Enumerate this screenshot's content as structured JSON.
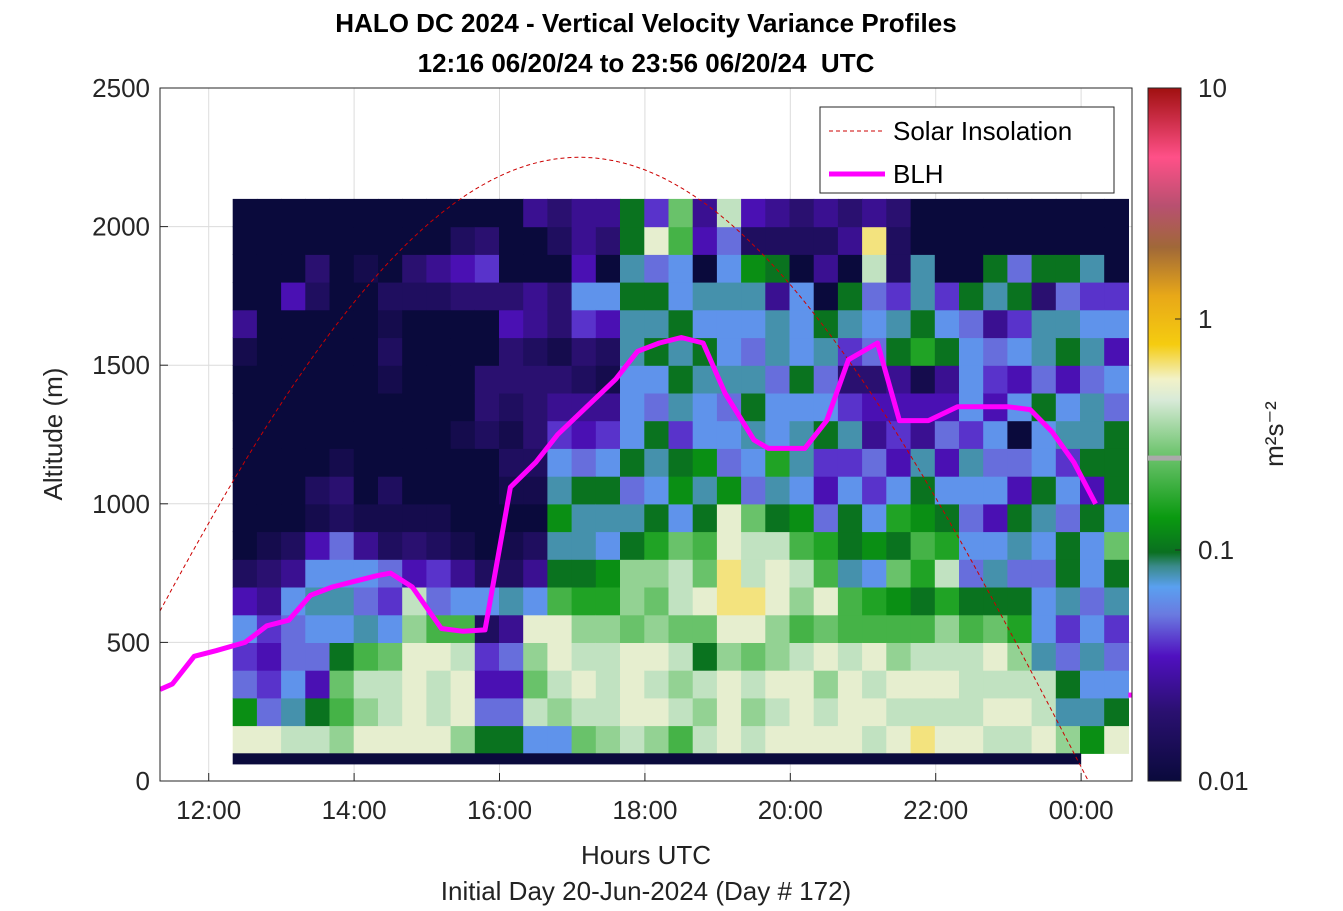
{
  "chart_data": {
    "type": "heatmap",
    "title": "HALO DC 2024 - Vertical Velocity Variance Profiles",
    "subtitle": "12:16 06/20/24 to 23:56 06/20/24  UTC",
    "xlabel": "Hours UTC",
    "sublabel": "Initial Day 20-Jun-2024 (Day # 172)",
    "ylabel": "Altitude (m)",
    "x_range_hours": [
      11.33,
      24.7
    ],
    "ylim": [
      0,
      2500
    ],
    "x_ticks": [
      {
        "hour": 12,
        "label": "12:00"
      },
      {
        "hour": 14,
        "label": "14:00"
      },
      {
        "hour": 16,
        "label": "16:00"
      },
      {
        "hour": 18,
        "label": "18:00"
      },
      {
        "hour": 20,
        "label": "20:00"
      },
      {
        "hour": 22,
        "label": "22:00"
      },
      {
        "hour": 24,
        "label": "00:00"
      }
    ],
    "y_ticks": [
      0,
      500,
      1000,
      1500,
      2000,
      2500
    ],
    "colorbar": {
      "scale": "log",
      "range": [
        0.01,
        10
      ],
      "ticks": [
        "0.01",
        "0.1",
        "1",
        "10"
      ],
      "label": "m²s⁻²",
      "marker_value": 0.25
    },
    "grid": true,
    "legend": {
      "placement": "top-right",
      "entries": [
        "Solar Insolation",
        "BLH"
      ]
    },
    "variance_grid": {
      "x_start_hours": 12.33,
      "x_end_hours": 24.0,
      "time_step_hours": 0.333,
      "altitude_bins_m": [
        150,
        250,
        350,
        450,
        550,
        650,
        750,
        850,
        950,
        1050,
        1150,
        1250,
        1350,
        1450,
        1550,
        1650,
        1750,
        1850,
        1950,
        2050
      ],
      "log10_variance_rows_by_time": [
        [
          -0.3,
          -0.9,
          -1.3,
          -1.4,
          -1.2,
          -1.5,
          -1.8,
          -2.0,
          -2.0,
          -2.0,
          -2.0,
          -2.0,
          -2.0,
          -2.0,
          -1.9,
          -1.6,
          -2.0,
          -2.0,
          -2.0,
          -2.0
        ],
        [
          -0.3,
          -1.3,
          -1.4,
          -1.5,
          -1.4,
          -1.6,
          -1.7,
          -1.9,
          -2.0,
          -2.0,
          -2.0,
          -2.0,
          -2.0,
          -2.0,
          -2.0,
          -2.0,
          -2.0,
          -2.0,
          -2.0,
          -2.0
        ],
        [
          -0.4,
          -1.1,
          -1.2,
          -1.3,
          -1.3,
          -1.2,
          -1.6,
          -1.8,
          -2.0,
          -2.0,
          -2.0,
          -2.0,
          -2.0,
          -2.0,
          -2.0,
          -2.0,
          -1.5,
          -2.0,
          -2.0,
          -2.0
        ],
        [
          -0.4,
          -1.0,
          -1.5,
          -1.3,
          -1.2,
          -1.1,
          -1.2,
          -1.5,
          -1.9,
          -1.8,
          -2.0,
          -2.0,
          -2.0,
          -2.0,
          -2.0,
          -2.0,
          -1.8,
          -1.7,
          -2.0,
          -2.0
        ],
        [
          -0.5,
          -0.7,
          -0.6,
          -1.0,
          -1.2,
          -1.1,
          -1.2,
          -1.3,
          -1.8,
          -1.7,
          -1.9,
          -2.0,
          -2.0,
          -2.0,
          -2.0,
          -2.0,
          -2.0,
          -2.0,
          -2.0,
          -2.0
        ],
        [
          -0.3,
          -0.5,
          -0.4,
          -0.7,
          -1.1,
          -1.3,
          -1.2,
          -1.6,
          -1.9,
          -2.0,
          -2.0,
          -2.0,
          -2.0,
          -2.0,
          -2.0,
          -2.0,
          -2.0,
          -1.9,
          -2.0,
          -2.0
        ],
        [
          -0.3,
          -0.4,
          -0.4,
          -0.6,
          -1.2,
          -1.4,
          -1.3,
          -1.8,
          -1.9,
          -1.8,
          -2.0,
          -2.0,
          -2.0,
          -1.9,
          -1.8,
          -1.9,
          -1.8,
          -2.0,
          -2.0,
          -2.0
        ],
        [
          -0.3,
          -0.3,
          -0.3,
          -0.3,
          -0.5,
          -0.4,
          -1.5,
          -1.7,
          -1.9,
          -2.0,
          -2.0,
          -2.0,
          -2.0,
          -2.0,
          -2.0,
          -2.0,
          -1.8,
          -1.7,
          -2.0,
          -2.0
        ],
        [
          -0.3,
          -0.4,
          -0.4,
          -0.3,
          -0.7,
          -1.3,
          -1.4,
          -1.8,
          -1.9,
          -2.0,
          -2.0,
          -2.0,
          -2.0,
          -2.0,
          -2.0,
          -2.0,
          -1.8,
          -1.6,
          -2.0,
          -2.0
        ],
        [
          -0.5,
          -0.3,
          -0.3,
          -0.4,
          -0.7,
          -1.2,
          -1.6,
          -1.9,
          -2.0,
          -2.0,
          -2.0,
          -1.9,
          -2.0,
          -2.0,
          -2.0,
          -2.0,
          -1.7,
          -1.5,
          -1.8,
          -2.0
        ],
        [
          -1.0,
          -1.3,
          -1.5,
          -1.4,
          -1.8,
          -1.2,
          -1.8,
          -2.0,
          -2.0,
          -2.0,
          -2.0,
          -1.8,
          -1.7,
          -1.7,
          -2.0,
          -2.0,
          -1.7,
          -1.4,
          -1.7,
          -2.0
        ],
        [
          -1.0,
          -1.3,
          -1.5,
          -1.3,
          -1.6,
          -1.1,
          -1.8,
          -1.9,
          -2.0,
          -1.9,
          -1.8,
          -1.9,
          -1.8,
          -1.7,
          -1.7,
          -1.5,
          -1.7,
          -2.0,
          -2.0,
          -2.0
        ],
        [
          -1.2,
          -0.4,
          -0.6,
          -0.5,
          -0.3,
          -1.2,
          -1.6,
          -1.8,
          -2.0,
          -1.9,
          -1.8,
          -1.7,
          -1.7,
          -1.7,
          -1.8,
          -1.6,
          -1.6,
          -2.0,
          -2.0,
          -1.6
        ],
        [
          -1.2,
          -0.5,
          -0.4,
          -0.3,
          -0.3,
          -0.7,
          -1.0,
          -1.1,
          -0.9,
          -1.1,
          -1.2,
          -1.4,
          -1.6,
          -1.7,
          -1.9,
          -1.7,
          -1.7,
          -2.0,
          -1.8,
          -1.7
        ],
        [
          -0.6,
          -0.4,
          -0.3,
          -0.4,
          -0.5,
          -0.8,
          -1.0,
          -1.1,
          -1.1,
          -1.0,
          -1.3,
          -1.5,
          -1.6,
          -1.8,
          -1.7,
          -1.4,
          -1.2,
          -1.5,
          -1.6,
          -1.6
        ],
        [
          -0.5,
          -0.4,
          -0.4,
          -0.4,
          -0.5,
          -0.8,
          -0.9,
          -1.2,
          -1.1,
          -1.0,
          -1.2,
          -1.4,
          -1.6,
          -1.9,
          -1.8,
          -1.5,
          -1.2,
          -2.0,
          -1.7,
          -1.6
        ],
        [
          -0.4,
          -0.3,
          -0.3,
          -0.3,
          -0.6,
          -0.5,
          -0.5,
          -1.0,
          -1.1,
          -1.3,
          -1.0,
          -1.2,
          -1.2,
          -1.2,
          -1.1,
          -1.1,
          -1.0,
          -1.1,
          -1.0,
          -1.0
        ],
        [
          -0.5,
          -0.3,
          -0.4,
          -0.3,
          -0.5,
          -0.6,
          -0.5,
          -0.8,
          -1.0,
          -1.2,
          -1.1,
          -1.0,
          -1.3,
          -1.2,
          -1.0,
          -1.1,
          -1.0,
          -1.3,
          -0.3,
          -1.4
        ],
        [
          -0.7,
          -0.4,
          -0.5,
          -0.4,
          -0.6,
          -0.4,
          -0.4,
          -0.6,
          -1.2,
          -0.9,
          -1.0,
          -1.4,
          -1.1,
          -1.0,
          -1.1,
          -1.0,
          -1.2,
          -1.2,
          -0.7,
          -0.6
        ],
        [
          -0.4,
          -0.5,
          -0.4,
          -1.0,
          -0.6,
          -0.3,
          -0.6,
          -0.7,
          -1.0,
          -1.1,
          -0.9,
          -1.2,
          -1.2,
          -1.1,
          -1.0,
          -1.2,
          -1.1,
          -2.0,
          -1.5,
          -1.6
        ],
        [
          -0.3,
          -0.3,
          -0.3,
          -0.5,
          -0.3,
          -0.2,
          -0.2,
          -0.3,
          -0.3,
          -0.9,
          -1.3,
          -1.2,
          -1.3,
          -1.1,
          -1.2,
          -1.2,
          -1.1,
          -1.2,
          -1.3,
          -0.4
        ],
        [
          -0.4,
          -0.5,
          -0.4,
          -0.6,
          -0.3,
          -0.2,
          -0.4,
          -0.4,
          -0.6,
          -1.3,
          -1.2,
          -1.1,
          -1.0,
          -1.1,
          -1.3,
          -1.2,
          -1.1,
          -0.9,
          -1.8,
          -1.5
        ],
        [
          -0.3,
          -0.4,
          -0.3,
          -0.5,
          -0.5,
          -0.3,
          -0.3,
          -0.4,
          -1.0,
          -1.1,
          -0.8,
          -1.2,
          -1.2,
          -1.3,
          -1.1,
          -1.1,
          -1.6,
          -1.0,
          -1.8,
          -1.6
        ],
        [
          -0.3,
          -0.3,
          -0.3,
          -0.4,
          -0.7,
          -0.5,
          -0.4,
          -0.7,
          -0.9,
          -1.2,
          -1.1,
          -1.1,
          -1.2,
          -1.0,
          -1.2,
          -1.2,
          -1.2,
          -2.0,
          -1.8,
          -1.7
        ],
        [
          -0.3,
          -0.4,
          -0.5,
          -0.3,
          -0.6,
          -0.3,
          -0.7,
          -0.8,
          -1.3,
          -1.5,
          -1.4,
          -1.0,
          -1.2,
          -1.3,
          -1.1,
          -1.0,
          -2.0,
          -1.6,
          -1.8,
          -1.6
        ],
        [
          -0.3,
          -0.3,
          -0.3,
          -0.4,
          -0.7,
          -0.7,
          -1.1,
          -1.0,
          -1.0,
          -1.2,
          -1.4,
          -1.1,
          -1.4,
          -1.7,
          -1.4,
          -1.1,
          -1.0,
          -2.0,
          -1.6,
          -1.7
        ],
        [
          -0.4,
          -0.3,
          -0.4,
          -0.3,
          -0.7,
          -0.8,
          -1.2,
          -0.9,
          -1.2,
          -1.4,
          -1.3,
          -1.6,
          -1.5,
          -1.7,
          -1.3,
          -1.2,
          -1.3,
          -0.4,
          -0.2,
          -1.6
        ],
        [
          -0.3,
          -0.4,
          -0.3,
          -0.5,
          -0.7,
          -0.9,
          -0.6,
          -1.0,
          -0.8,
          -1.2,
          -1.5,
          -1.4,
          -1.5,
          -1.6,
          -1.0,
          -1.1,
          -1.4,
          -1.8,
          -1.8,
          -1.7
        ],
        [
          -0.2,
          -0.4,
          -0.3,
          -0.4,
          -0.7,
          -1.0,
          -0.8,
          -0.7,
          -0.9,
          -1.0,
          -1.1,
          -1.6,
          -1.5,
          -1.9,
          -0.8,
          -1.0,
          -1.1,
          -1.1,
          -2.0,
          -2.0
        ],
        [
          -0.3,
          -0.4,
          -0.3,
          -0.4,
          -0.5,
          -0.8,
          -0.4,
          -0.8,
          -1.0,
          -1.2,
          -1.5,
          -1.3,
          -1.5,
          -1.6,
          -1.0,
          -1.2,
          -1.4,
          -2.0,
          -2.0,
          -2.0
        ],
        [
          -0.3,
          -0.4,
          -0.4,
          -0.4,
          -0.7,
          -1.0,
          -1.3,
          -1.2,
          -1.3,
          -1.2,
          -1.1,
          -1.4,
          -1.2,
          -1.2,
          -1.2,
          -1.3,
          -1.0,
          -2.0,
          -2.0,
          -2.0
        ],
        [
          -0.4,
          -0.3,
          -0.4,
          -0.3,
          -0.6,
          -1.0,
          -1.1,
          -1.2,
          -1.5,
          -1.2,
          -1.3,
          -1.2,
          -1.5,
          -1.4,
          -1.3,
          -1.6,
          -1.1,
          -1.0,
          -2.0,
          -2.0
        ],
        [
          -0.4,
          -0.3,
          -0.4,
          -0.5,
          -0.8,
          -1.0,
          -1.3,
          -1.1,
          -1.0,
          -1.5,
          -1.3,
          -2.0,
          -1.2,
          -1.5,
          -1.2,
          -1.4,
          -1.0,
          -1.3,
          -2.0,
          -2.0
        ],
        [
          -0.3,
          -0.4,
          -0.4,
          -1.1,
          -1.2,
          -1.2,
          -1.3,
          -1.2,
          -1.1,
          -1.0,
          -1.2,
          -1.2,
          -1.0,
          -1.3,
          -1.1,
          -1.1,
          -1.7,
          -1.0,
          -2.0,
          -2.0
        ],
        [
          -0.5,
          -1.1,
          -1.0,
          -1.3,
          -1.4,
          -1.1,
          -1.0,
          -1.0,
          -1.3,
          -1.2,
          -1.4,
          -1.1,
          -1.2,
          -1.5,
          -1.0,
          -1.1,
          -1.3,
          -1.0,
          -2.0,
          -2.0
        ],
        [
          -0.9,
          -1.1,
          -1.2,
          -1.1,
          -1.2,
          -1.3,
          -1.2,
          -1.2,
          -1.0,
          -1.5,
          -1.0,
          -1.1,
          -1.1,
          -1.3,
          -1.1,
          -1.2,
          -1.4,
          -1.1,
          -2.0,
          -2.0
        ],
        [
          -0.3,
          -1.0,
          -1.2,
          -1.3,
          -1.4,
          -1.1,
          -1.0,
          -0.6,
          -1.2,
          -1.0,
          -1.0,
          -1.0,
          -1.3,
          -1.2,
          -1.5,
          -1.2,
          -1.4,
          -2.0,
          -2.0,
          -2.0
        ]
      ]
    },
    "blh_series": {
      "name": "BLH",
      "color": "#ff00ff",
      "x_hours": [
        11.33,
        11.5,
        11.8,
        12.1,
        12.5,
        12.8,
        13.1,
        13.4,
        13.7,
        14.0,
        14.3,
        14.5,
        14.8,
        15.2,
        15.5,
        15.8,
        16.15,
        16.5,
        16.8,
        17.2,
        17.6,
        17.9,
        18.2,
        18.5,
        18.8,
        19.1,
        19.5,
        19.7,
        20.2,
        20.5,
        20.8,
        21.2,
        21.5,
        21.9,
        22.3,
        22.6,
        23.0,
        23.3,
        23.6,
        23.9,
        24.2
      ],
      "y_m": [
        330,
        350,
        450,
        470,
        500,
        560,
        580,
        670,
        700,
        720,
        740,
        750,
        700,
        550,
        540,
        545,
        1060,
        1150,
        1250,
        1350,
        1450,
        1550,
        1580,
        1600,
        1580,
        1400,
        1230,
        1200,
        1200,
        1300,
        1520,
        1580,
        1300,
        1300,
        1350,
        1350,
        1350,
        1340,
        1260,
        1150,
        1000
      ],
      "trailing_point": {
        "x_hours": 24.8,
        "y_m": 310
      }
    },
    "solar_series": {
      "name": "Solar Insolation",
      "color": "#cc0000",
      "peak_hour": 17.1,
      "peak_altitude_m": 2250,
      "half_width_hours": 7.0
    }
  }
}
